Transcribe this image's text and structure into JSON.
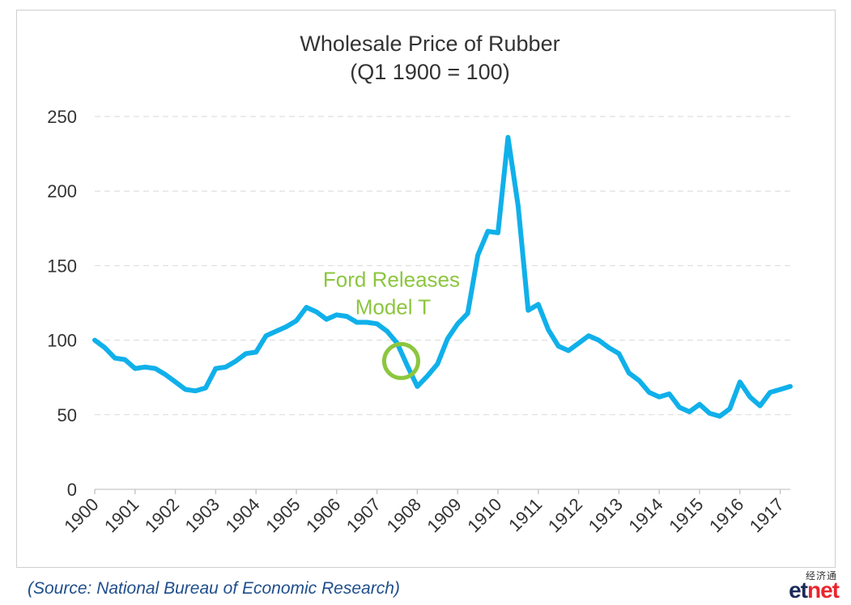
{
  "chart_data": {
    "type": "line",
    "title": "Wholesale Price of Rubber",
    "subtitle": "(Q1 1900 = 100)",
    "x_ticks": [
      "1900",
      "1901",
      "1902",
      "1903",
      "1904",
      "1905",
      "1906",
      "1907",
      "1908",
      "1909",
      "1910",
      "1911",
      "1912",
      "1913",
      "1914",
      "1915",
      "1916",
      "1917"
    ],
    "y_ticks": [
      0,
      50,
      100,
      150,
      200,
      250
    ],
    "ylim": [
      0,
      250
    ],
    "xlim": [
      1900,
      1917.25
    ],
    "grid": "horizontal dashed",
    "x": [
      1900,
      1900.25,
      1900.5,
      1900.75,
      1901,
      1901.25,
      1901.5,
      1901.75,
      1902,
      1902.25,
      1902.5,
      1902.75,
      1903,
      1903.25,
      1903.5,
      1903.75,
      1904,
      1904.25,
      1904.5,
      1904.75,
      1905,
      1905.25,
      1905.5,
      1905.75,
      1906,
      1906.25,
      1906.5,
      1906.75,
      1907,
      1907.25,
      1907.5,
      1907.75,
      1908,
      1908.25,
      1908.5,
      1908.75,
      1909,
      1909.25,
      1909.5,
      1909.75,
      1910,
      1910.25,
      1910.5,
      1910.75,
      1911,
      1911.25,
      1911.5,
      1911.75,
      1912,
      1912.25,
      1912.5,
      1912.75,
      1913,
      1913.25,
      1913.5,
      1913.75,
      1914,
      1914.25,
      1914.5,
      1914.75,
      1915,
      1915.25,
      1915.5,
      1915.75,
      1916,
      1916.25,
      1916.5,
      1916.75,
      1917,
      1917.25
    ],
    "series": [
      {
        "values": [
          100,
          95,
          88,
          87,
          81,
          82,
          81,
          77,
          72,
          67,
          66,
          68,
          81,
          82,
          86,
          91,
          92,
          103,
          106,
          109,
          113,
          122,
          119,
          114,
          117,
          116,
          112,
          112,
          111,
          106,
          98,
          83,
          69,
          76,
          84,
          101,
          111,
          118,
          157,
          173,
          172,
          236,
          190,
          120,
          124,
          107,
          96,
          93,
          98,
          103,
          100,
          95,
          91,
          78,
          73,
          65,
          62,
          64,
          55,
          52,
          57,
          51,
          49,
          54,
          72,
          62,
          56,
          65,
          67,
          69
        ]
      }
    ],
    "annotation": {
      "text_line1": "Ford Releases",
      "text_line2": "Model T",
      "x": 1907.6,
      "y": 86
    },
    "colors": {
      "line": "#10b0ea",
      "annotation": "#8cc63f",
      "grid": "#d9d9d9",
      "axis_text": "#333333",
      "title_text": "#333333"
    }
  },
  "footer": {
    "source": "(Source: National Bureau of Economic Research)",
    "logo_cn": "经济通",
    "logo_et": "et",
    "logo_net": "net",
    "logo_et_color": "#1a2a5a",
    "logo_net_color": "#e8262e"
  }
}
